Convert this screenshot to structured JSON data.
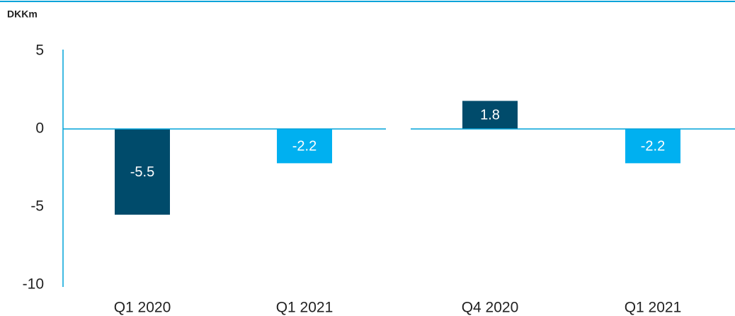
{
  "chart_data": {
    "type": "bar",
    "y_label": "DKKm",
    "categories": [
      "Q1 2020",
      "Q1 2021",
      "Q4 2020",
      "Q1 2021"
    ],
    "values": [
      -5.5,
      -2.2,
      1.8,
      -2.2
    ],
    "colors": [
      "#004b6b",
      "#00b0f0",
      "#004b6b",
      "#00b0f0"
    ],
    "ylim": [
      -10,
      5
    ],
    "yticks": [
      5,
      0,
      -5,
      -10
    ],
    "grid": false
  }
}
